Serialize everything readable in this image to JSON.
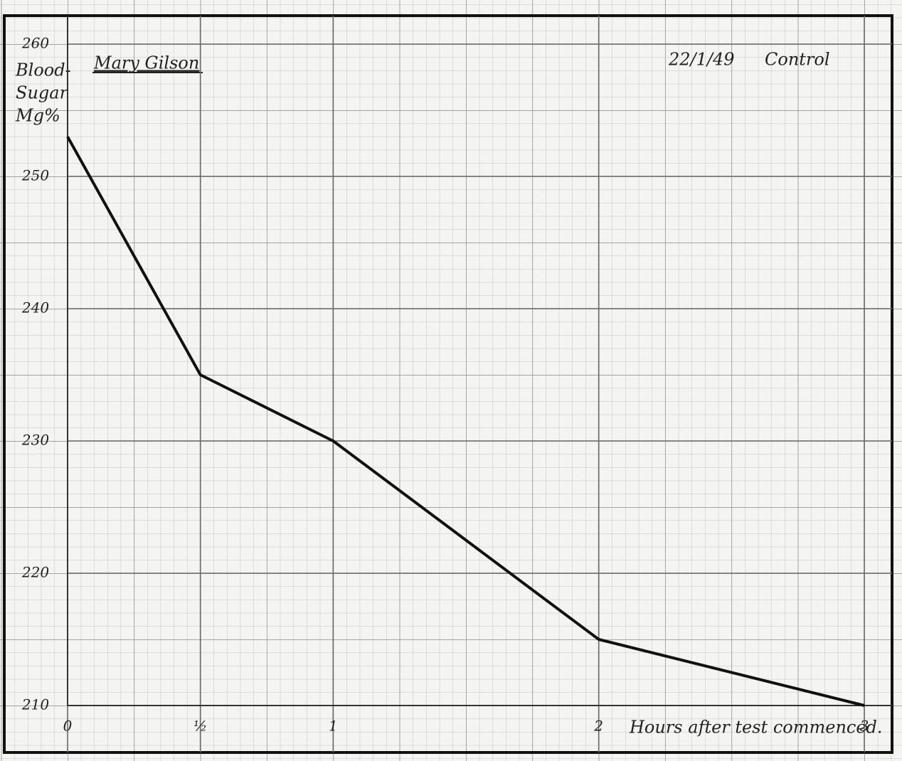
{
  "chart_data": {
    "type": "line",
    "title": "Mary Gilson",
    "annotations": [
      "22/1/49",
      "Control"
    ],
    "ylabel": [
      "Blood-",
      "Sugar",
      "Mg%"
    ],
    "xlabel": "Hours after test commenced.",
    "x": [
      0,
      0.5,
      1,
      2,
      3
    ],
    "values": [
      253,
      235,
      230,
      215,
      210
    ],
    "color": "#111111",
    "xlim": [
      0,
      3
    ],
    "ylim": [
      210,
      260
    ],
    "xticks": [
      0,
      {
        "value": 0.5,
        "label": "½"
      },
      1,
      2,
      3
    ],
    "yticks": [
      210,
      220,
      230,
      240,
      250,
      260
    ],
    "grid": true
  }
}
